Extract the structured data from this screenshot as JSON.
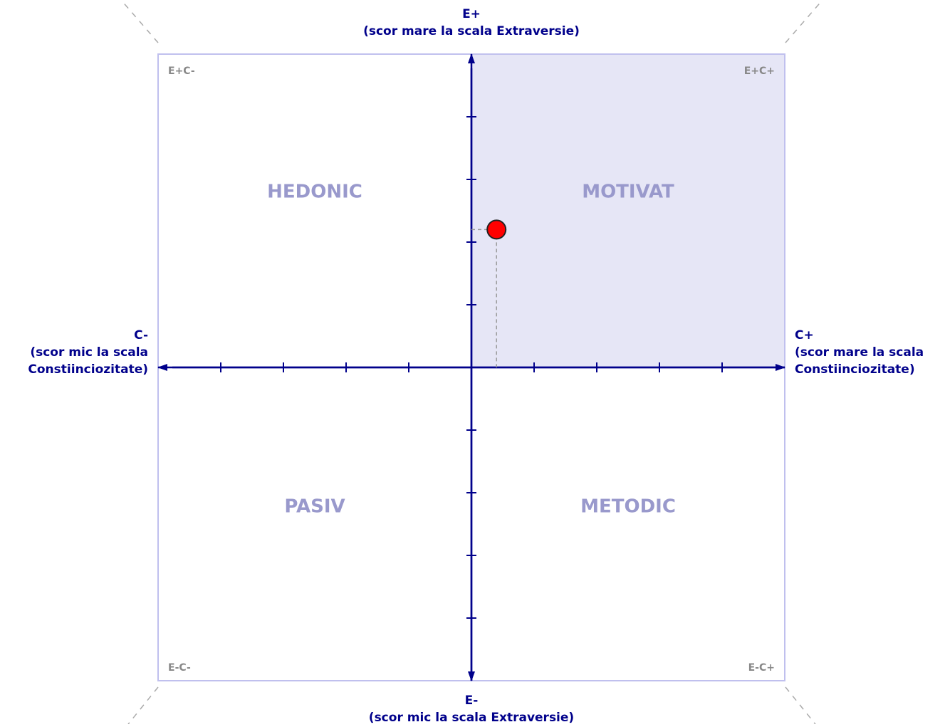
{
  "chart_data": {
    "type": "scatter",
    "x": [
      0.4
    ],
    "y": [
      2.2
    ],
    "color": "#ff0000",
    "xlim": [
      -5,
      5
    ],
    "ylim": [
      -5,
      5
    ],
    "xticks": [
      -4,
      -3,
      -2,
      -1,
      0,
      1,
      2,
      3,
      4
    ],
    "yticks": [
      -4,
      -3,
      -2,
      -1,
      1,
      2,
      3,
      4
    ],
    "axis_labels": {
      "top": [
        "E+",
        "(scor mare la scala Extraversie)"
      ],
      "bottom": [
        "E-",
        "(scor mic la scala Extraversie)"
      ],
      "left": [
        "C-",
        "(scor mic la scala",
        "Constiinciozitate)"
      ],
      "right": [
        "C+",
        "(scor mare la scala",
        "Constiinciozitate)"
      ]
    },
    "quadrants": [
      {
        "name": "HEDONIC",
        "code": "E+C-",
        "highlight": false
      },
      {
        "name": "MOTIVAT",
        "code": "E+C+",
        "highlight": true
      },
      {
        "name": "PASIV",
        "code": "E-C-",
        "highlight": false
      },
      {
        "name": "METODIC",
        "code": "E-C+",
        "highlight": false
      }
    ]
  }
}
